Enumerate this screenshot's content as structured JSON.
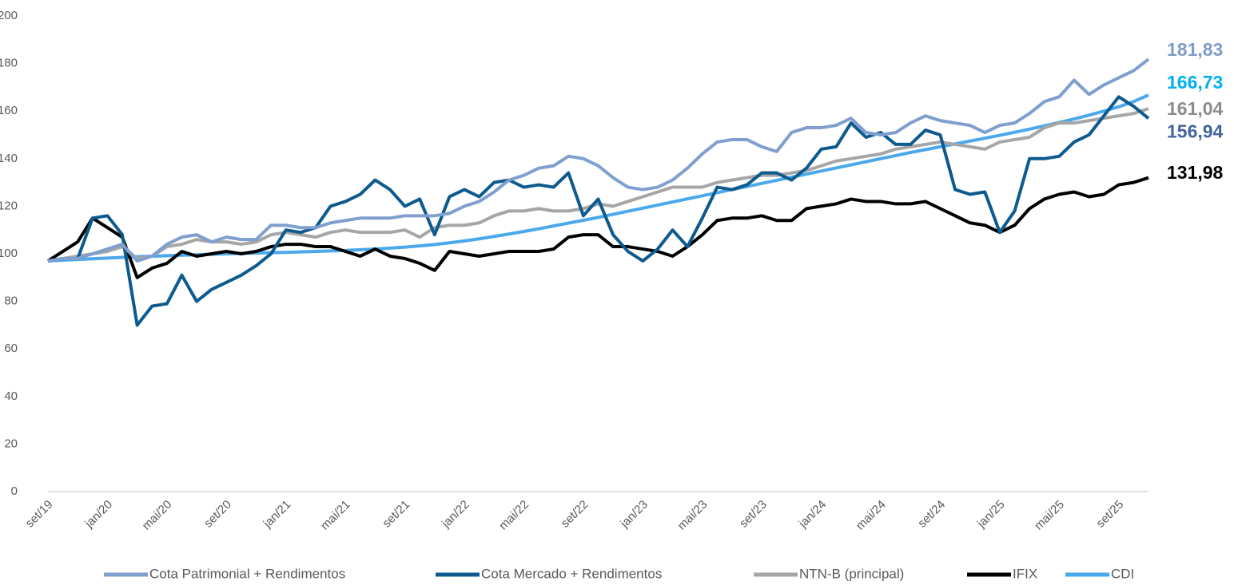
{
  "chart_data": {
    "type": "line",
    "categories": [
      "set/19",
      null,
      null,
      null,
      "jan/20",
      null,
      null,
      null,
      "mai/20",
      null,
      null,
      null,
      "set/20",
      null,
      null,
      null,
      "jan/21",
      null,
      null,
      null,
      "mai/21",
      null,
      null,
      null,
      "set/21",
      null,
      null,
      null,
      "jan/22",
      null,
      null,
      null,
      "mai/22",
      null,
      null,
      null,
      "set/22",
      null,
      null,
      null,
      "jan/23",
      null,
      null,
      null,
      "mai/23",
      null,
      null,
      null,
      "set/23",
      null,
      null,
      null,
      "jan/24",
      null,
      null,
      null,
      "mai/24",
      null,
      null,
      null,
      "set/24",
      null,
      null,
      null,
      "jan/25",
      null,
      null,
      null,
      "mai/25",
      null,
      null,
      null,
      "set/25",
      null,
      null
    ],
    "ylim": [
      0,
      200
    ],
    "yticks": [
      0,
      20,
      40,
      60,
      80,
      100,
      120,
      140,
      160,
      180,
      200
    ],
    "grid": false,
    "legend": "bottom",
    "series": [
      {
        "name": "Cota Patrimonial + Rendimentos",
        "color": "#7f9fcf",
        "label_color": "#7f9cc8",
        "values": [
          97,
          98,
          98,
          100,
          102,
          104,
          97,
          99,
          104,
          107,
          108,
          105,
          107,
          106,
          106,
          112,
          112,
          111,
          111,
          113,
          114,
          115,
          115,
          115,
          116,
          116,
          116,
          117,
          120,
          122,
          126,
          131,
          133,
          136,
          137,
          141,
          140,
          137,
          132,
          128,
          127,
          128,
          131,
          136,
          142,
          147,
          148,
          148,
          145,
          143,
          151,
          153,
          153,
          154,
          157,
          151,
          150,
          151,
          155,
          158,
          156,
          155,
          154,
          151,
          154,
          155,
          159,
          164,
          166,
          173,
          167,
          171,
          174,
          177,
          181.83
        ],
        "value_labels": [
          null,
          null,
          null,
          null,
          null,
          null,
          null,
          null,
          null,
          null,
          null,
          null,
          null,
          null,
          null,
          null,
          null,
          null,
          null,
          null,
          null,
          null,
          null,
          null,
          null,
          null,
          null,
          null,
          null,
          null,
          null,
          null,
          null,
          null,
          null,
          null,
          null,
          null,
          null,
          null,
          null,
          null,
          null,
          null,
          null,
          null,
          null,
          null,
          null,
          null,
          null,
          null,
          null,
          null,
          null,
          null,
          null,
          null,
          null,
          null,
          null,
          null,
          null,
          null,
          null,
          null,
          null,
          null,
          null,
          null,
          null,
          null,
          null,
          null,
          "181,83"
        ]
      },
      {
        "name": "Cota Mercado + Rendimentos",
        "color": "#0d5a8f",
        "label_color": "#44649c",
        "values": [
          97,
          98,
          98,
          115,
          116,
          108,
          70,
          78,
          79,
          91,
          80,
          85,
          88,
          91,
          95,
          100,
          110,
          109,
          111,
          120,
          122,
          125,
          131,
          127,
          120,
          123,
          108,
          124,
          127,
          124,
          130,
          131,
          128,
          129,
          128,
          134,
          116,
          123,
          108,
          101,
          97,
          102,
          110,
          103,
          115,
          128,
          127,
          129,
          134,
          134,
          131,
          136,
          144,
          145,
          155,
          149,
          151,
          146,
          146,
          152,
          150,
          127,
          125,
          126,
          109,
          118,
          140,
          140,
          141,
          147,
          150,
          158,
          166,
          162,
          156.94
        ],
        "value_labels": [
          null,
          null,
          null,
          null,
          null,
          null,
          null,
          null,
          null,
          null,
          null,
          null,
          null,
          null,
          null,
          null,
          null,
          null,
          null,
          null,
          null,
          null,
          null,
          null,
          null,
          null,
          null,
          null,
          null,
          null,
          null,
          null,
          null,
          null,
          null,
          null,
          null,
          null,
          null,
          null,
          null,
          null,
          null,
          null,
          null,
          null,
          null,
          null,
          null,
          null,
          null,
          null,
          null,
          null,
          null,
          null,
          null,
          null,
          null,
          null,
          null,
          null,
          null,
          null,
          null,
          null,
          null,
          null,
          null,
          null,
          null,
          null,
          null,
          null,
          "156,94"
        ]
      },
      {
        "name": "NTN-B (principal)",
        "color": "#a6a6a6",
        "label_color": "#8c8c8c",
        "values": [
          97,
          98,
          99,
          100,
          101,
          103,
          98,
          99,
          103,
          104,
          106,
          105,
          105,
          104,
          105,
          108,
          109,
          108,
          107,
          109,
          110,
          109,
          109,
          109,
          110,
          107,
          111,
          112,
          112,
          113,
          116,
          118,
          118,
          119,
          118,
          118,
          119,
          121,
          120,
          122,
          124,
          126,
          128,
          128,
          128,
          130,
          131,
          132,
          133,
          133,
          134,
          135,
          137,
          139,
          140,
          141,
          142,
          144,
          145,
          146,
          147,
          146,
          145,
          144,
          147,
          148,
          149,
          153,
          155,
          155,
          156,
          157,
          158,
          159,
          161.04
        ],
        "value_labels": [
          null,
          null,
          null,
          null,
          null,
          null,
          null,
          null,
          null,
          null,
          null,
          null,
          null,
          null,
          null,
          null,
          null,
          null,
          null,
          null,
          null,
          null,
          null,
          null,
          null,
          null,
          null,
          null,
          null,
          null,
          null,
          null,
          null,
          null,
          null,
          null,
          null,
          null,
          null,
          null,
          null,
          null,
          null,
          null,
          null,
          null,
          null,
          null,
          null,
          null,
          null,
          null,
          null,
          null,
          null,
          null,
          null,
          null,
          null,
          null,
          null,
          null,
          null,
          null,
          null,
          null,
          null,
          null,
          null,
          null,
          null,
          null,
          null,
          null,
          "161,04"
        ]
      },
      {
        "name": "IFIX",
        "color": "#000000",
        "label_color": "#000000",
        "values": [
          97,
          101,
          105,
          115,
          111,
          107,
          90,
          94,
          96,
          101,
          99,
          100,
          101,
          100,
          101,
          103,
          104,
          104,
          103,
          103,
          101,
          99,
          102,
          99,
          98,
          96,
          93,
          101,
          100,
          99,
          100,
          101,
          101,
          101,
          102,
          107,
          108,
          108,
          103,
          103,
          102,
          101,
          99,
          103,
          108,
          114,
          115,
          115,
          116,
          114,
          114,
          119,
          120,
          121,
          123,
          122,
          122,
          121,
          121,
          122,
          119,
          116,
          113,
          112,
          109,
          112,
          119,
          123,
          125,
          126,
          124,
          125,
          129,
          130,
          131.98
        ],
        "value_labels": [
          null,
          null,
          null,
          null,
          null,
          null,
          null,
          null,
          null,
          null,
          null,
          null,
          null,
          null,
          null,
          null,
          null,
          null,
          null,
          null,
          null,
          null,
          null,
          null,
          null,
          null,
          null,
          null,
          null,
          null,
          null,
          null,
          null,
          null,
          null,
          null,
          null,
          null,
          null,
          null,
          null,
          null,
          null,
          null,
          null,
          null,
          null,
          null,
          null,
          null,
          null,
          null,
          null,
          null,
          null,
          null,
          null,
          null,
          null,
          null,
          null,
          null,
          null,
          null,
          null,
          null,
          null,
          null,
          null,
          null,
          null,
          null,
          null,
          null,
          "131,98"
        ]
      },
      {
        "name": "CDI",
        "color": "#4aa8ec",
        "label_color": "#00b0f0",
        "values": [
          97,
          97.3,
          97.6,
          97.9,
          98.2,
          98.5,
          98.8,
          99,
          99.2,
          99.4,
          99.6,
          99.8,
          100,
          100.2,
          100.3,
          100.5,
          100.6,
          100.8,
          101,
          101.2,
          101.4,
          101.7,
          102,
          102.4,
          102.8,
          103.3,
          103.9,
          104.6,
          105.4,
          106.3,
          107.3,
          108.3,
          109.4,
          110.5,
          111.7,
          112.9,
          114.1,
          115.3,
          116.6,
          117.9,
          119.2,
          120.5,
          121.8,
          123.1,
          124.4,
          125.7,
          127,
          128.3,
          129.6,
          130.9,
          132.2,
          133.5,
          134.8,
          136.1,
          137.4,
          138.7,
          140,
          141.3,
          142.6,
          143.8,
          145,
          146.2,
          147.4,
          148.6,
          149.8,
          151.1,
          152.4,
          153.8,
          155.2,
          156.7,
          158.3,
          160,
          161.8,
          164,
          166.73
        ],
        "value_labels": [
          null,
          null,
          null,
          null,
          null,
          null,
          null,
          null,
          null,
          null,
          null,
          null,
          null,
          null,
          null,
          null,
          null,
          null,
          null,
          null,
          null,
          null,
          null,
          null,
          null,
          null,
          null,
          null,
          null,
          null,
          null,
          null,
          null,
          null,
          null,
          null,
          null,
          null,
          null,
          null,
          null,
          null,
          null,
          null,
          null,
          null,
          null,
          null,
          null,
          null,
          null,
          null,
          null,
          null,
          null,
          null,
          null,
          null,
          null,
          null,
          null,
          null,
          null,
          null,
          null,
          null,
          null,
          null,
          null,
          null,
          null,
          null,
          null,
          null,
          "166,73"
        ]
      }
    ]
  }
}
